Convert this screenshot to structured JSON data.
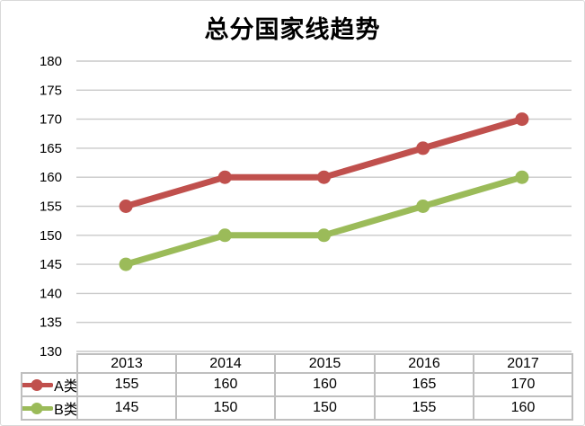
{
  "chart_data": {
    "type": "line",
    "title": "总分国家线趋势",
    "categories": [
      "2013",
      "2014",
      "2015",
      "2016",
      "2017"
    ],
    "series": [
      {
        "name": "A类",
        "values": [
          155,
          160,
          160,
          165,
          170
        ],
        "color": "#C0504D"
      },
      {
        "name": "B类",
        "values": [
          145,
          150,
          150,
          155,
          160
        ],
        "color": "#9BBB59"
      }
    ],
    "ylim": [
      130,
      180
    ],
    "ytick_step": 5,
    "yticks": [
      180,
      175,
      170,
      165,
      160,
      155,
      150,
      145,
      140,
      135,
      130
    ],
    "xlabel": "",
    "ylabel": "",
    "grid": "horizontal-only",
    "marker": "circle",
    "legend_position": "data-table-left",
    "data_table_shown": true,
    "colors": {
      "gridline": "#c9c9c9",
      "table_border": "#bfbfbf",
      "text": "#000000",
      "frame_border": "#d9d9d9",
      "background": "#ffffff"
    }
  }
}
